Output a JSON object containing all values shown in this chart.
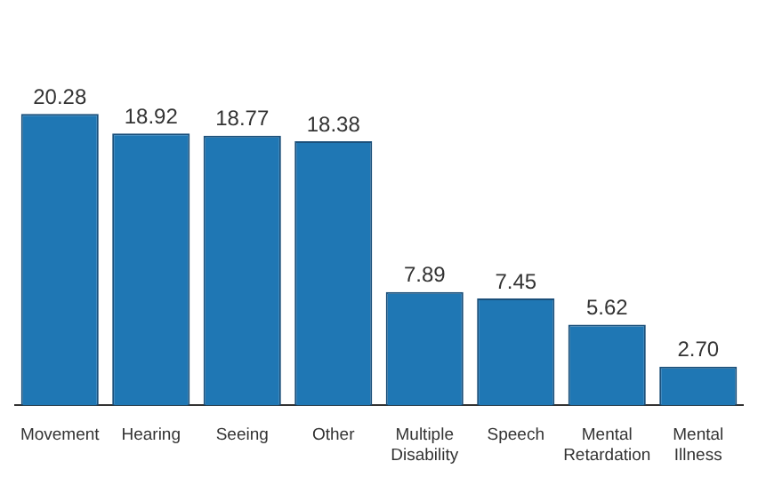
{
  "chart_data": {
    "type": "bar",
    "categories": [
      "Movement",
      "Hearing",
      "Seeing",
      "Other",
      "Multiple Disability",
      "Speech",
      "Mental Retardation",
      "Mental Illness"
    ],
    "values": [
      20.28,
      18.92,
      18.77,
      18.38,
      7.89,
      7.45,
      5.62,
      2.7
    ],
    "value_labels": [
      "20.28",
      "18.92",
      "18.77",
      "18.38",
      "7.89",
      "7.45",
      "5.62",
      "2.70"
    ],
    "color": "#1f77b4",
    "data_labels": true
  }
}
